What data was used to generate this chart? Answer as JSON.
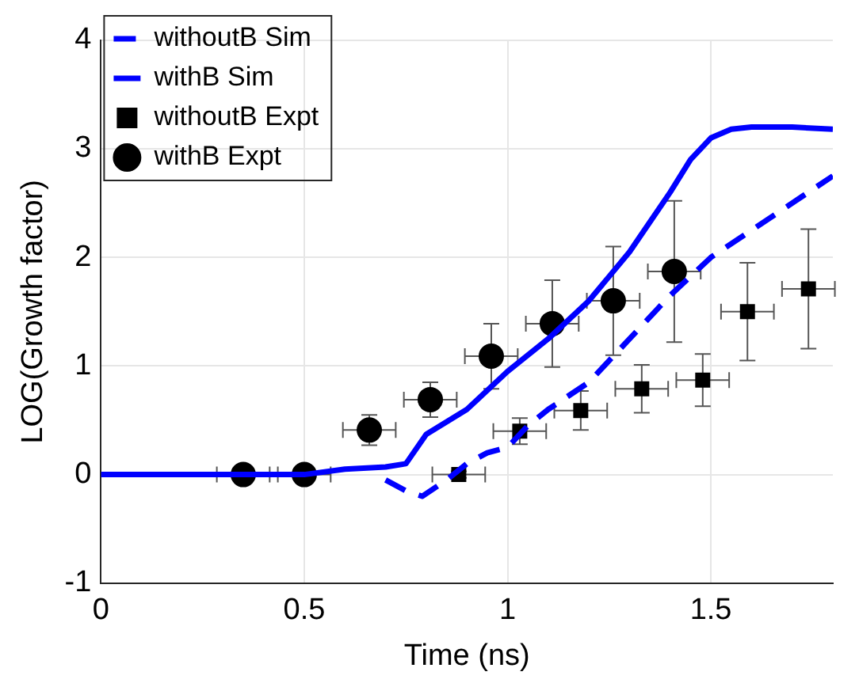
{
  "chart_data": {
    "type": "line",
    "xlabel": "Time (ns)",
    "ylabel": "LOG(Growth factor)",
    "xlim": [
      0,
      1.8
    ],
    "xticks": [
      0,
      0.5,
      1,
      1.5
    ],
    "ylim": [
      -1,
      4
    ],
    "yticks": [
      -1,
      0,
      1,
      2,
      3,
      4
    ],
    "grid": true,
    "legend": "top left",
    "series": [
      {
        "name": "withoutB Sim",
        "color": "#0000ff",
        "line_style": "dashed",
        "marker": "none",
        "x": [
          0.7,
          0.75,
          0.79,
          0.85,
          0.9,
          0.95,
          1.0,
          1.05,
          1.1,
          1.2,
          1.3,
          1.4,
          1.5,
          1.6,
          1.7,
          1.8
        ],
        "values": [
          -0.05,
          -0.15,
          -0.2,
          -0.05,
          0.1,
          0.2,
          0.25,
          0.45,
          0.6,
          0.85,
          1.25,
          1.65,
          2.0,
          2.25,
          2.5,
          2.75
        ]
      },
      {
        "name": "withB Sim",
        "color": "#0000ff",
        "line_style": "solid",
        "marker": "none",
        "x": [
          0,
          0.1,
          0.2,
          0.3,
          0.4,
          0.5,
          0.6,
          0.7,
          0.75,
          0.8,
          0.9,
          1.0,
          1.1,
          1.2,
          1.3,
          1.4,
          1.45,
          1.5,
          1.55,
          1.6,
          1.7,
          1.8
        ],
        "values": [
          0,
          0,
          0,
          0,
          0,
          0,
          0.05,
          0.07,
          0.1,
          0.37,
          0.6,
          0.95,
          1.25,
          1.6,
          2.05,
          2.6,
          2.9,
          3.1,
          3.18,
          3.2,
          3.2,
          3.18
        ]
      },
      {
        "type": "scatter",
        "name": "withoutB Expt",
        "color": "#000000",
        "marker": "square",
        "x": [
          0.88,
          1.03,
          1.18,
          1.33,
          1.48,
          1.59,
          1.74
        ],
        "values": [
          0,
          0.4,
          0.59,
          0.79,
          0.87,
          1.5,
          1.71
        ],
        "errors": [
          0.03,
          0.12,
          0.18,
          0.22,
          0.24,
          0.45,
          0.55
        ],
        "xerrors": [
          0.065,
          0.065,
          0.065,
          0.065,
          0.065,
          0.065,
          0.065
        ]
      },
      {
        "type": "scatter",
        "name": "withB Expt",
        "color": "#000000",
        "marker": "circle",
        "x": [
          0.35,
          0.5,
          0.66,
          0.81,
          0.96,
          1.11,
          1.26,
          1.41
        ],
        "values": [
          0,
          0,
          0.41,
          0.69,
          1.09,
          1.39,
          1.6,
          1.87
        ],
        "errors": [
          0.02,
          0.02,
          0.14,
          0.16,
          0.3,
          0.4,
          0.5,
          0.65
        ],
        "xerrors": [
          0.065,
          0.065,
          0.065,
          0.065,
          0.065,
          0.065,
          0.065,
          0.065
        ]
      }
    ]
  }
}
